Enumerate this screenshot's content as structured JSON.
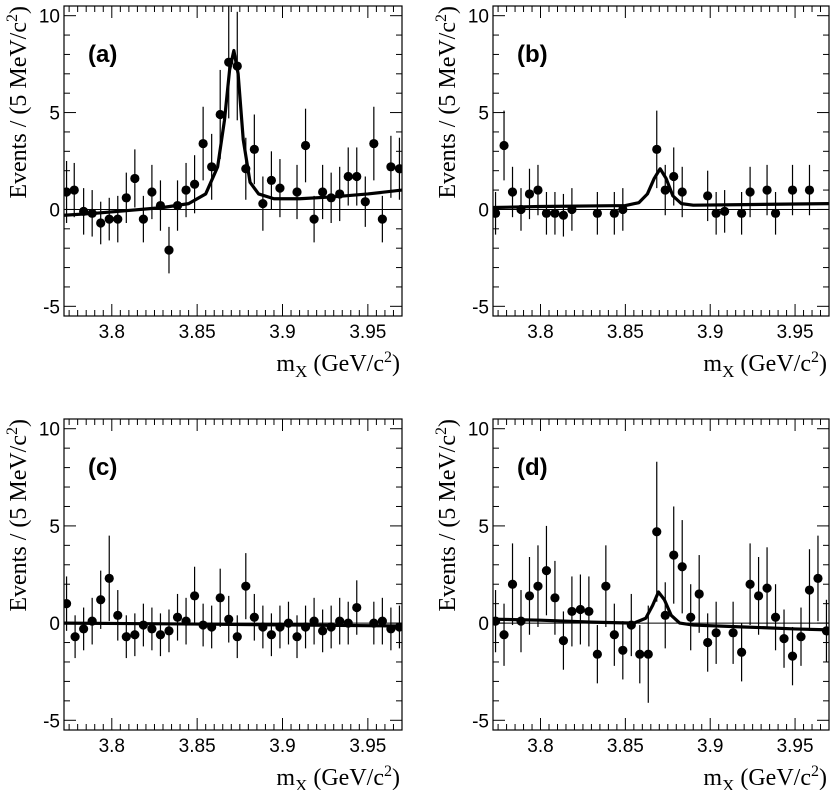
{
  "chart_data": [
    {
      "type": "scatter",
      "panel_label": "(a)",
      "ylabel_main": "Events / (5 MeV/c",
      "ylabel_sup": "2",
      "ylabel_end": ")",
      "xlabel_m": "m",
      "xlabel_sub": "X",
      "xlabel_main": " (GeV/c",
      "xlabel_sup": "2",
      "xlabel_end": ")",
      "xlim": [
        3.772,
        3.97
      ],
      "ylim": [
        -5.5,
        10.5
      ],
      "x_ticks": [
        3.8,
        3.85,
        3.9,
        3.95
      ],
      "x_tick_labels": [
        "3.8",
        "3.85",
        "3.9",
        "3.95"
      ],
      "y_ticks": [
        -5,
        0,
        5,
        10
      ],
      "y_tick_labels": [
        "-5",
        "0",
        "5",
        "10"
      ],
      "points": [
        {
          "x": 3.7735,
          "y": 0.9,
          "err": 1.6
        },
        {
          "x": 3.778,
          "y": 1.0,
          "err": 1.4
        },
        {
          "x": 3.7835,
          "y": -0.1,
          "err": 1.2
        },
        {
          "x": 3.7885,
          "y": -0.2,
          "err": 1.2
        },
        {
          "x": 3.7935,
          "y": -0.7,
          "err": 1.1
        },
        {
          "x": 3.7985,
          "y": -0.5,
          "err": 1.1
        },
        {
          "x": 3.8035,
          "y": -0.5,
          "err": 1.2
        },
        {
          "x": 3.8085,
          "y": 0.6,
          "err": 1.3
        },
        {
          "x": 3.8135,
          "y": 1.6,
          "err": 1.5
        },
        {
          "x": 3.8185,
          "y": -0.5,
          "err": 1.2
        },
        {
          "x": 3.8235,
          "y": 0.9,
          "err": 1.4
        },
        {
          "x": 3.8285,
          "y": 0.2,
          "err": 1.3
        },
        {
          "x": 3.8335,
          "y": -2.1,
          "err": 1.2
        },
        {
          "x": 3.8385,
          "y": 0.2,
          "err": 1.3
        },
        {
          "x": 3.8435,
          "y": 1.0,
          "err": 1.4
        },
        {
          "x": 3.8485,
          "y": 1.3,
          "err": 1.5
        },
        {
          "x": 3.8535,
          "y": 3.4,
          "err": 1.9
        },
        {
          "x": 3.8585,
          "y": 2.2,
          "err": 1.7
        },
        {
          "x": 3.8635,
          "y": 4.9,
          "err": 2.3
        },
        {
          "x": 3.8685,
          "y": 7.6,
          "err": 2.9
        },
        {
          "x": 3.8735,
          "y": 7.4,
          "err": 2.8
        },
        {
          "x": 3.8785,
          "y": 2.1,
          "err": 1.6
        },
        {
          "x": 3.8835,
          "y": 3.1,
          "err": 1.8
        },
        {
          "x": 3.8885,
          "y": 0.3,
          "err": 1.4
        },
        {
          "x": 3.8935,
          "y": 1.5,
          "err": 1.5
        },
        {
          "x": 3.8985,
          "y": 1.1,
          "err": 1.5
        },
        {
          "x": 3.9085,
          "y": 0.9,
          "err": 1.4
        },
        {
          "x": 3.9135,
          "y": 3.3,
          "err": 1.9
        },
        {
          "x": 3.9185,
          "y": -0.5,
          "err": 1.2
        },
        {
          "x": 3.9235,
          "y": 0.9,
          "err": 1.4
        },
        {
          "x": 3.9285,
          "y": 0.6,
          "err": 1.3
        },
        {
          "x": 3.9335,
          "y": 0.8,
          "err": 1.4
        },
        {
          "x": 3.9385,
          "y": 1.7,
          "err": 1.5
        },
        {
          "x": 3.9435,
          "y": 1.7,
          "err": 1.5
        },
        {
          "x": 3.9485,
          "y": 0.4,
          "err": 1.3
        },
        {
          "x": 3.9535,
          "y": 3.4,
          "err": 1.9
        },
        {
          "x": 3.9585,
          "y": -0.5,
          "err": 1.2
        },
        {
          "x": 3.9635,
          "y": 2.2,
          "err": 1.6
        },
        {
          "x": 3.9685,
          "y": 2.1,
          "err": 1.6
        }
      ],
      "fit": {
        "x": [
          3.772,
          3.79,
          3.81,
          3.83,
          3.845,
          3.855,
          3.862,
          3.866,
          3.869,
          3.8715,
          3.874,
          3.877,
          3.881,
          3.886,
          3.895,
          3.91,
          3.93,
          3.95,
          3.97
        ],
        "y": [
          -0.3,
          -0.2,
          -0.05,
          0.1,
          0.3,
          0.8,
          2.2,
          4.6,
          7.2,
          8.2,
          7.0,
          3.6,
          1.4,
          0.8,
          0.55,
          0.55,
          0.65,
          0.8,
          1.0
        ]
      }
    },
    {
      "type": "scatter",
      "panel_label": "(b)",
      "ylabel_main": "Events / (5 MeV/c",
      "ylabel_sup": "2",
      "ylabel_end": ")",
      "xlabel_m": "m",
      "xlabel_sub": "X",
      "xlabel_main": " (GeV/c",
      "xlabel_sup": "2",
      "xlabel_end": ")",
      "xlim": [
        3.772,
        3.97
      ],
      "ylim": [
        -5.5,
        10.5
      ],
      "x_ticks": [
        3.8,
        3.85,
        3.9,
        3.95
      ],
      "x_tick_labels": [
        "3.8",
        "3.85",
        "3.9",
        "3.95"
      ],
      "y_ticks": [
        -5,
        0,
        5,
        10
      ],
      "y_tick_labels": [
        "-5",
        "0",
        "5",
        "10"
      ],
      "points": [
        {
          "x": 3.7735,
          "y": -0.2,
          "err": 1.1
        },
        {
          "x": 3.7785,
          "y": 3.3,
          "err": 1.8
        },
        {
          "x": 3.7835,
          "y": 0.9,
          "err": 1.3
        },
        {
          "x": 3.7885,
          "y": 0.0,
          "err": 1.1
        },
        {
          "x": 3.7935,
          "y": 0.8,
          "err": 1.3
        },
        {
          "x": 3.7985,
          "y": 1.0,
          "err": 1.3
        },
        {
          "x": 3.8035,
          "y": -0.2,
          "err": 1.1
        },
        {
          "x": 3.8085,
          "y": -0.2,
          "err": 1.1
        },
        {
          "x": 3.8135,
          "y": -0.3,
          "err": 1.1
        },
        {
          "x": 3.8185,
          "y": 0.0,
          "err": 1.1
        },
        {
          "x": 3.8335,
          "y": -0.2,
          "err": 1.1
        },
        {
          "x": 3.8435,
          "y": -0.2,
          "err": 1.1
        },
        {
          "x": 3.8485,
          "y": 0.0,
          "err": 1.1
        },
        {
          "x": 3.8685,
          "y": 3.1,
          "err": 2.0
        },
        {
          "x": 3.8735,
          "y": 1.0,
          "err": 1.3
        },
        {
          "x": 3.8785,
          "y": 1.7,
          "err": 1.5
        },
        {
          "x": 3.8835,
          "y": 0.9,
          "err": 1.3
        },
        {
          "x": 3.8985,
          "y": 0.7,
          "err": 1.3
        },
        {
          "x": 3.9035,
          "y": -0.2,
          "err": 1.1
        },
        {
          "x": 3.9085,
          "y": -0.1,
          "err": 1.1
        },
        {
          "x": 3.9185,
          "y": -0.2,
          "err": 1.1
        },
        {
          "x": 3.9235,
          "y": 0.9,
          "err": 1.3
        },
        {
          "x": 3.9335,
          "y": 1.0,
          "err": 1.3
        },
        {
          "x": 3.9385,
          "y": -0.2,
          "err": 1.1
        },
        {
          "x": 3.9485,
          "y": 1.0,
          "err": 1.3
        },
        {
          "x": 3.9585,
          "y": 1.0,
          "err": 1.3
        }
      ],
      "fit": {
        "x": [
          3.772,
          3.8,
          3.83,
          3.85,
          3.858,
          3.863,
          3.867,
          3.8705,
          3.874,
          3.878,
          3.883,
          3.89,
          3.92,
          3.97
        ],
        "y": [
          0.1,
          0.15,
          0.18,
          0.2,
          0.35,
          0.8,
          1.6,
          2.1,
          1.6,
          0.7,
          0.3,
          0.22,
          0.25,
          0.3
        ]
      }
    },
    {
      "type": "scatter",
      "panel_label": "(c)",
      "ylabel_main": "Events / (5 MeV/c",
      "ylabel_sup": "2",
      "ylabel_end": ")",
      "xlabel_m": "m",
      "xlabel_sub": "X",
      "xlabel_main": " (GeV/c",
      "xlabel_sup": "2",
      "xlabel_end": ")",
      "xlim": [
        3.772,
        3.97
      ],
      "ylim": [
        -5.5,
        10.5
      ],
      "x_ticks": [
        3.8,
        3.85,
        3.9,
        3.95
      ],
      "x_tick_labels": [
        "3.8",
        "3.85",
        "3.9",
        "3.95"
      ],
      "y_ticks": [
        -5,
        0,
        5,
        10
      ],
      "y_tick_labels": [
        "-5",
        "0",
        "5",
        "10"
      ],
      "points": [
        {
          "x": 3.7735,
          "y": 1.0,
          "err": 1.4
        },
        {
          "x": 3.7785,
          "y": -0.7,
          "err": 1.1
        },
        {
          "x": 3.7835,
          "y": -0.3,
          "err": 1.1
        },
        {
          "x": 3.7885,
          "y": 0.1,
          "err": 1.2
        },
        {
          "x": 3.7935,
          "y": 1.2,
          "err": 1.5
        },
        {
          "x": 3.7985,
          "y": 2.3,
          "err": 2.2
        },
        {
          "x": 3.8035,
          "y": 0.4,
          "err": 1.3
        },
        {
          "x": 3.8085,
          "y": -0.7,
          "err": 1.1
        },
        {
          "x": 3.8135,
          "y": -0.6,
          "err": 1.1
        },
        {
          "x": 3.8185,
          "y": -0.1,
          "err": 1.1
        },
        {
          "x": 3.8235,
          "y": -0.3,
          "err": 1.1
        },
        {
          "x": 3.8285,
          "y": -0.6,
          "err": 1.1
        },
        {
          "x": 3.8335,
          "y": -0.4,
          "err": 1.1
        },
        {
          "x": 3.8385,
          "y": 0.3,
          "err": 1.2
        },
        {
          "x": 3.8435,
          "y": 0.1,
          "err": 1.2
        },
        {
          "x": 3.8485,
          "y": 1.4,
          "err": 1.5
        },
        {
          "x": 3.8535,
          "y": -0.1,
          "err": 1.1
        },
        {
          "x": 3.8585,
          "y": -0.2,
          "err": 1.1
        },
        {
          "x": 3.8635,
          "y": 1.3,
          "err": 1.5
        },
        {
          "x": 3.8685,
          "y": 0.2,
          "err": 1.2
        },
        {
          "x": 3.8735,
          "y": -0.7,
          "err": 1.1
        },
        {
          "x": 3.8785,
          "y": 1.9,
          "err": 1.7
        },
        {
          "x": 3.8835,
          "y": 0.3,
          "err": 1.2
        },
        {
          "x": 3.8885,
          "y": -0.2,
          "err": 1.1
        },
        {
          "x": 3.8935,
          "y": -0.6,
          "err": 1.1
        },
        {
          "x": 3.8985,
          "y": -0.2,
          "err": 1.1
        },
        {
          "x": 3.9035,
          "y": 0.0,
          "err": 1.1
        },
        {
          "x": 3.9085,
          "y": -0.7,
          "err": 1.1
        },
        {
          "x": 3.9135,
          "y": -0.2,
          "err": 1.1
        },
        {
          "x": 3.9185,
          "y": 0.1,
          "err": 1.2
        },
        {
          "x": 3.9235,
          "y": -0.4,
          "err": 1.1
        },
        {
          "x": 3.9285,
          "y": -0.2,
          "err": 1.1
        },
        {
          "x": 3.9335,
          "y": 0.1,
          "err": 1.2
        },
        {
          "x": 3.9385,
          "y": 0.0,
          "err": 1.1
        },
        {
          "x": 3.9435,
          "y": 0.8,
          "err": 1.4
        },
        {
          "x": 3.9535,
          "y": 0.0,
          "err": 1.1
        },
        {
          "x": 3.9585,
          "y": 0.1,
          "err": 1.2
        },
        {
          "x": 3.9635,
          "y": -0.3,
          "err": 1.1
        },
        {
          "x": 3.9685,
          "y": -0.2,
          "err": 1.1
        }
      ],
      "fit": {
        "x": [
          3.772,
          3.85,
          3.97
        ],
        "y": [
          0.0,
          -0.05,
          -0.15
        ]
      }
    },
    {
      "type": "scatter",
      "panel_label": "(d)",
      "ylabel_main": "Events / (5 MeV/c",
      "ylabel_sup": "2",
      "ylabel_end": ")",
      "xlabel_m": "m",
      "xlabel_sub": "X",
      "xlabel_main": " (GeV/c",
      "xlabel_sup": "2",
      "xlabel_end": ")",
      "xlim": [
        3.772,
        3.97
      ],
      "ylim": [
        -5.5,
        10.5
      ],
      "x_ticks": [
        3.8,
        3.85,
        3.9,
        3.95
      ],
      "x_tick_labels": [
        "3.8",
        "3.85",
        "3.9",
        "3.95"
      ],
      "y_ticks": [
        -5,
        0,
        5,
        10
      ],
      "y_tick_labels": [
        "-5",
        "0",
        "5",
        "10"
      ],
      "points": [
        {
          "x": 3.7735,
          "y": 0.1,
          "err": 1.6
        },
        {
          "x": 3.7785,
          "y": -0.6,
          "err": 1.6
        },
        {
          "x": 3.7835,
          "y": 2.0,
          "err": 2.1
        },
        {
          "x": 3.7885,
          "y": 0.1,
          "err": 1.6
        },
        {
          "x": 3.7935,
          "y": 1.4,
          "err": 2.0
        },
        {
          "x": 3.7985,
          "y": 1.9,
          "err": 2.1
        },
        {
          "x": 3.8035,
          "y": 2.7,
          "err": 2.3
        },
        {
          "x": 3.8085,
          "y": 1.3,
          "err": 1.9
        },
        {
          "x": 3.8135,
          "y": -0.9,
          "err": 1.5
        },
        {
          "x": 3.8185,
          "y": 0.6,
          "err": 1.8
        },
        {
          "x": 3.8235,
          "y": 0.7,
          "err": 1.8
        },
        {
          "x": 3.8285,
          "y": 0.6,
          "err": 1.8
        },
        {
          "x": 3.8335,
          "y": -1.6,
          "err": 1.5
        },
        {
          "x": 3.8385,
          "y": 1.9,
          "err": 2.1
        },
        {
          "x": 3.8435,
          "y": -0.6,
          "err": 1.6
        },
        {
          "x": 3.8485,
          "y": -1.4,
          "err": 1.5
        },
        {
          "x": 3.8535,
          "y": -0.1,
          "err": 1.6
        },
        {
          "x": 3.8585,
          "y": -1.6,
          "err": 1.5
        },
        {
          "x": 3.8635,
          "y": -1.6,
          "err": 2.5
        },
        {
          "x": 3.8685,
          "y": 4.7,
          "err": 3.6
        },
        {
          "x": 3.8735,
          "y": 0.4,
          "err": 1.7
        },
        {
          "x": 3.8785,
          "y": 3.5,
          "err": 2.5
        },
        {
          "x": 3.8835,
          "y": 2.9,
          "err": 2.4
        },
        {
          "x": 3.8885,
          "y": 0.3,
          "err": 1.7
        },
        {
          "x": 3.8935,
          "y": 1.5,
          "err": 2.0
        },
        {
          "x": 3.8985,
          "y": -1.0,
          "err": 1.5
        },
        {
          "x": 3.9035,
          "y": -0.5,
          "err": 1.6
        },
        {
          "x": 3.9135,
          "y": -0.5,
          "err": 1.6
        },
        {
          "x": 3.9185,
          "y": -1.5,
          "err": 1.5
        },
        {
          "x": 3.9235,
          "y": 2.0,
          "err": 2.1
        },
        {
          "x": 3.9285,
          "y": 1.4,
          "err": 2.0
        },
        {
          "x": 3.9335,
          "y": 1.8,
          "err": 2.1
        },
        {
          "x": 3.9385,
          "y": 0.3,
          "err": 1.7
        },
        {
          "x": 3.9435,
          "y": -0.8,
          "err": 1.5
        },
        {
          "x": 3.9485,
          "y": -1.7,
          "err": 1.5
        },
        {
          "x": 3.9535,
          "y": -0.7,
          "err": 1.5
        },
        {
          "x": 3.9585,
          "y": 1.7,
          "err": 2.1
        },
        {
          "x": 3.9635,
          "y": 2.3,
          "err": 2.2
        },
        {
          "x": 3.9685,
          "y": -0.4,
          "err": 1.6
        }
      ],
      "fit": {
        "x": [
          3.772,
          3.8,
          3.83,
          3.855,
          3.862,
          3.866,
          3.8695,
          3.873,
          3.877,
          3.882,
          3.89,
          3.92,
          3.95,
          3.97
        ],
        "y": [
          0.2,
          0.15,
          0.05,
          0.0,
          0.25,
          0.9,
          1.6,
          1.2,
          0.4,
          0.0,
          -0.1,
          -0.2,
          -0.3,
          -0.35
        ]
      }
    }
  ]
}
